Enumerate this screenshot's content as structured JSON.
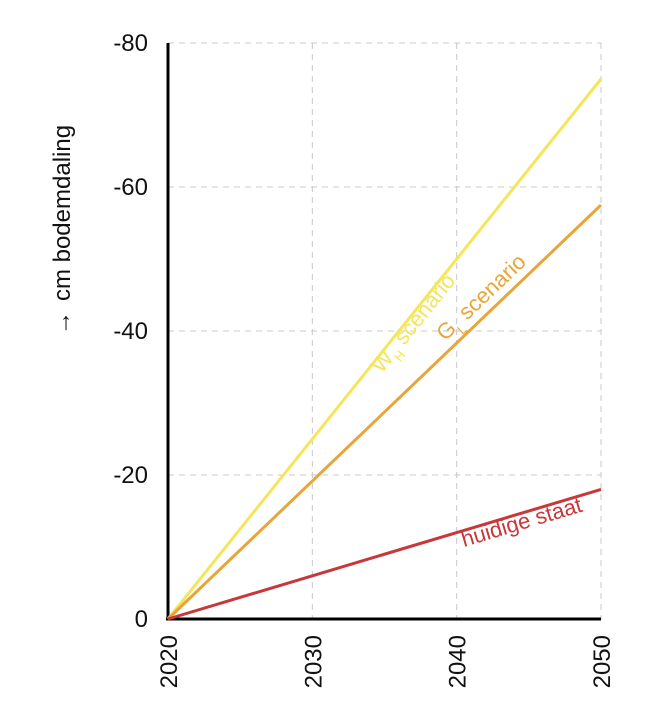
{
  "chart_data": {
    "type": "line",
    "title": "",
    "xlabel": "",
    "ylabel": "cm bodemdaling",
    "ylabel_arrow": "→",
    "x_ticks": [
      "2020",
      "2030",
      "2040",
      "2050"
    ],
    "y_ticks": [
      "0",
      "-20",
      "-40",
      "-60",
      "-80"
    ],
    "xlim": [
      2020,
      2050
    ],
    "ylim": [
      0,
      -80
    ],
    "y_axis_inverted": true,
    "grid": true,
    "series": [
      {
        "name": "W_H scenario",
        "label_main": "W",
        "label_sub": "H",
        "label_rest": " scenario",
        "color": "#f5e55a",
        "x": [
          2020,
          2050
        ],
        "y": [
          0,
          -75
        ]
      },
      {
        "name": "G_L scenario",
        "label_main": "G",
        "label_sub": "L",
        "label_rest": " scenario",
        "color": "#e8a53a",
        "x": [
          2020,
          2050
        ],
        "y": [
          0,
          -57.5
        ]
      },
      {
        "name": "huidige staat",
        "label_main": "huidige staat",
        "label_sub": "",
        "label_rest": "",
        "color": "#c8373a",
        "x": [
          2020,
          2050
        ],
        "y": [
          0,
          -18
        ]
      }
    ]
  }
}
